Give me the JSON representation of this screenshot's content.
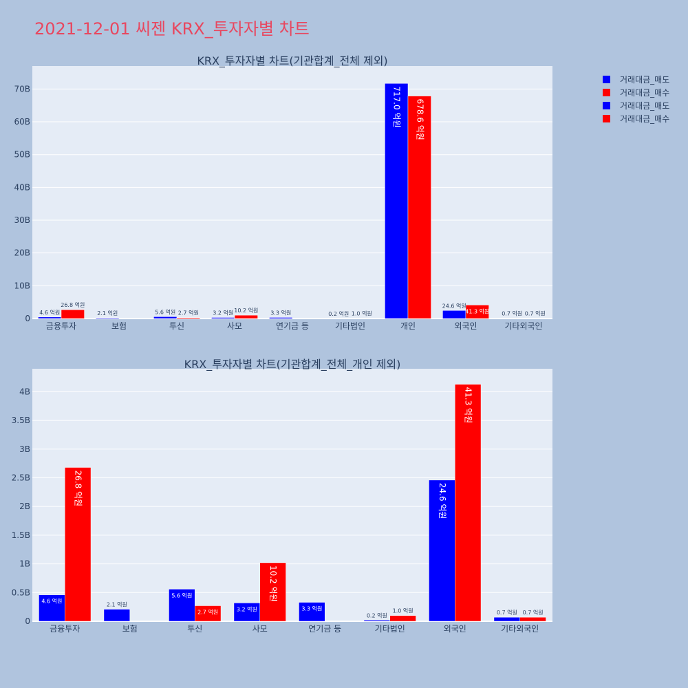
{
  "page_title": "2021-12-01 씨젠 KRX_투자자별 차트",
  "colors": {
    "sell": "#0000ff",
    "buy": "#ff0000",
    "plot_bg": "#e5ecf6",
    "page_bg": "#b0c4de",
    "title": "#e8475f"
  },
  "legend": [
    {
      "label": "거래대금_매도",
      "color": "#0000ff"
    },
    {
      "label": "거래대금_매수",
      "color": "#ff0000"
    },
    {
      "label": "거래대금_매도",
      "color": "#0000ff"
    },
    {
      "label": "거래대금_매수",
      "color": "#ff0000"
    }
  ],
  "chart_data": [
    {
      "type": "bar",
      "title": "KRX_투자자별 차트(기관합계_전체 제외)",
      "categories": [
        "금융투자",
        "보험",
        "투신",
        "사모",
        "연기금 등",
        "기타법인",
        "개인",
        "외국인",
        "기타외국인"
      ],
      "ylim": [
        0,
        77
      ],
      "yticks": [
        0,
        10,
        20,
        30,
        40,
        50,
        60,
        70
      ],
      "ytick_labels": [
        "0",
        "10B",
        "20B",
        "30B",
        "40B",
        "50B",
        "60B",
        "70B"
      ],
      "grid": true,
      "legend_position": "top-right",
      "series": [
        {
          "name": "거래대금_매도",
          "color": "#0000ff",
          "values": [
            0.46,
            0.21,
            0.56,
            0.32,
            0.33,
            0.02,
            71.7,
            2.46,
            0.07
          ],
          "labels": [
            "4.6 억원",
            "2.1 억원",
            "5.6 억원",
            "3.2 억원",
            "3.3 억원",
            "0.2 억원",
            "717.0 억원",
            "24.6 억원",
            "0.7 억원"
          ]
        },
        {
          "name": "거래대금_매수",
          "color": "#ff0000",
          "values": [
            2.68,
            0,
            0.27,
            1.02,
            0,
            0.1,
            67.86,
            4.13,
            0.07
          ],
          "labels": [
            "26.8 억원",
            "",
            "2.7 억원",
            "10.2 억원",
            "",
            "1.0 억원",
            "678.6 억원",
            "41.3 억원",
            "0.7 억원"
          ]
        }
      ]
    },
    {
      "type": "bar",
      "title": "KRX_투자자별 차트(기관합계_전체_개인 제외)",
      "categories": [
        "금융투자",
        "보험",
        "투신",
        "사모",
        "연기금 등",
        "기타법인",
        "외국인",
        "기타외국인"
      ],
      "ylim": [
        0,
        4.4
      ],
      "yticks": [
        0,
        0.5,
        1,
        1.5,
        2,
        2.5,
        3,
        3.5,
        4
      ],
      "ytick_labels": [
        "0",
        "0.5B",
        "1B",
        "1.5B",
        "2B",
        "2.5B",
        "3B",
        "3.5B",
        "4B"
      ],
      "grid": true,
      "series": [
        {
          "name": "거래대금_매도",
          "color": "#0000ff",
          "values": [
            0.46,
            0.21,
            0.56,
            0.32,
            0.33,
            0.02,
            2.46,
            0.07
          ],
          "labels": [
            "4.6 억원",
            "2.1 억원",
            "5.6 억원",
            "3.2 억원",
            "3.3 억원",
            "0.2 억원",
            "24.6 억원",
            "0.7 억원"
          ]
        },
        {
          "name": "거래대금_매수",
          "color": "#ff0000",
          "values": [
            2.68,
            0,
            0.27,
            1.02,
            0,
            0.1,
            4.13,
            0.07
          ],
          "labels": [
            "26.8 억원",
            "",
            "2.7 억원",
            "10.2 억원",
            "",
            "1.0 억원",
            "41.3 억원",
            "0.7 억원"
          ]
        }
      ]
    }
  ]
}
